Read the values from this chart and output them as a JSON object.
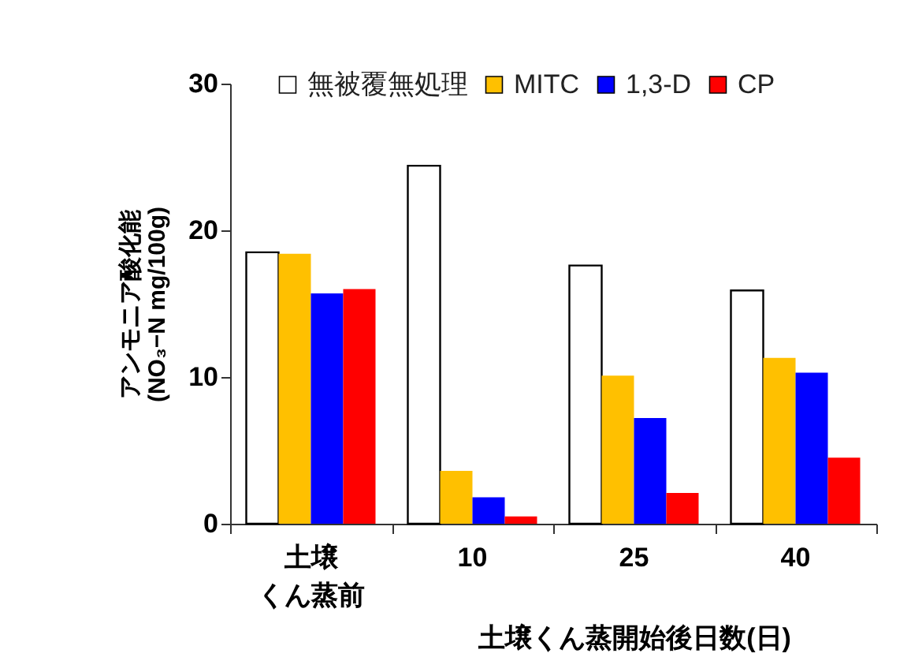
{
  "chart_data": {
    "type": "bar",
    "categories": [
      "土壌くん蒸前",
      "10",
      "25",
      "40"
    ],
    "xlabel": "土壌くん蒸開始後日数(日)",
    "ylabel": "アンモニア酸化能\n(NO₃−N mg/100g)",
    "ylim": [
      0,
      30
    ],
    "yticks": [
      0,
      10,
      20,
      30
    ],
    "legend": "top right",
    "series": [
      {
        "name": "無被覆無処理",
        "color": "#ffffff",
        "values": [
          18.5,
          24.4,
          17.6,
          15.9
        ]
      },
      {
        "name": "MITC",
        "color": "#ffc000",
        "values": [
          18.4,
          3.6,
          10.1,
          11.3
        ]
      },
      {
        "name": "1,3-D",
        "color": "#0000ff",
        "values": [
          15.7,
          1.8,
          7.2,
          10.3
        ]
      },
      {
        "name": "CP",
        "color": "#ff0000",
        "values": [
          16.0,
          0.5,
          2.1,
          4.5
        ]
      }
    ]
  }
}
